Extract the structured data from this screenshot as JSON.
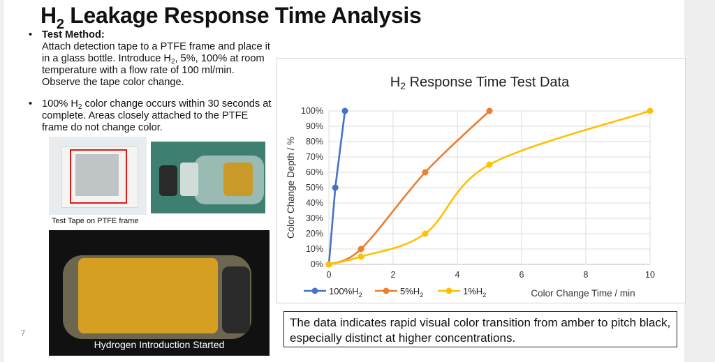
{
  "slide": {
    "title_main": "H",
    "title_sub": "2",
    "title_rest": " Leakage Response Time Analysis",
    "page_number": "7"
  },
  "bullets": {
    "b1_head": "Test Method:",
    "b1_text_a": "Attach detection tape to a PTFE frame and place it in a glass bottle. Introduce H",
    "b1_sub": "2",
    "b1_text_b": ", 5%, 100% at room temperature with a flow rate of 100 ml/min. Observe the tape color change.",
    "b2_text_a": "100% H",
    "b2_sub": "2",
    "b2_text_b": " color change occurs within 30 seconds at complete. Areas closely attached to the PTFE frame do not change color."
  },
  "photos": {
    "caption_1": "Test Tape on PTFE frame",
    "caption_3": "Hydrogen Introduction Started"
  },
  "callout": "The data indicates rapid visual color transition from amber to pitch black, especially distinct at higher concentrations.",
  "chart_data": {
    "type": "line",
    "title_main": "H",
    "title_sub": "2",
    "title_rest": " Response Time Test Data",
    "xlabel": "Color Change Time / min",
    "ylabel": "Color Change Depth / %",
    "xlim": [
      0,
      10
    ],
    "ylim": [
      0,
      100
    ],
    "x_ticks": [
      0,
      2,
      4,
      6,
      8,
      10
    ],
    "y_ticks": [
      "0%",
      "10%",
      "20%",
      "30%",
      "40%",
      "50%",
      "60%",
      "70%",
      "80%",
      "90%",
      "100%"
    ],
    "grid": true,
    "legend_position": "bottom-left",
    "series": [
      {
        "name_main": "100%H",
        "name_sub": "2",
        "color": "#4472c4",
        "smooth": false,
        "points": [
          [
            0,
            0
          ],
          [
            0.2,
            50
          ],
          [
            0.5,
            100
          ]
        ]
      },
      {
        "name_main": "5%H",
        "name_sub": "2",
        "color": "#ed7d31",
        "smooth": true,
        "points": [
          [
            0,
            0
          ],
          [
            1,
            10
          ],
          [
            3,
            60
          ],
          [
            5,
            100
          ]
        ]
      },
      {
        "name_main": "1%H",
        "name_sub": "2",
        "color": "#ffc000",
        "smooth": true,
        "points": [
          [
            0,
            0
          ],
          [
            1,
            5
          ],
          [
            3,
            20
          ],
          [
            5,
            65
          ],
          [
            10,
            100
          ]
        ]
      }
    ]
  }
}
